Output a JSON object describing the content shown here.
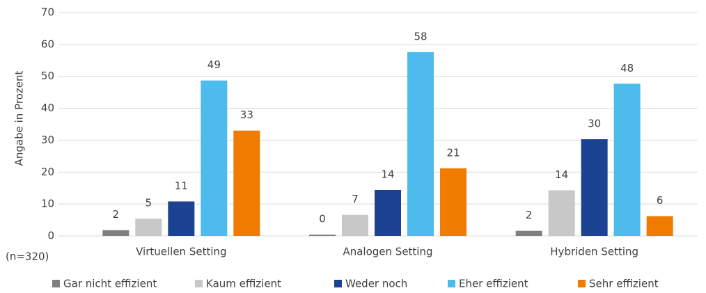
{
  "chart_data": {
    "type": "bar",
    "y_label": "Angabe in Prozent",
    "annotation": "(n=320)",
    "categories": [
      "Virtuellen Setting",
      "Analogen Setting",
      "Hybriden Setting"
    ],
    "series": [
      {
        "name": "Gar nicht effizient",
        "color": "#7f7f7f",
        "values": [
          1.8,
          0.4,
          1.6
        ],
        "value_labels": [
          "2",
          "0",
          "2"
        ]
      },
      {
        "name": "Kaum effizient",
        "color": "#c8c8c8",
        "values": [
          5.4,
          6.6,
          14.3
        ],
        "value_labels": [
          "5",
          "7",
          "14"
        ]
      },
      {
        "name": "Weder noch",
        "color": "#1c4391",
        "values": [
          10.8,
          14.4,
          30.3
        ],
        "value_labels": [
          "11",
          "14",
          "30"
        ]
      },
      {
        "name": "Eher effizient",
        "color": "#4dbcec",
        "values": [
          48.7,
          57.6,
          47.7
        ],
        "value_labels": [
          "49",
          "58",
          "48"
        ]
      },
      {
        "name": "Sehr effizient",
        "color": "#ef7b00",
        "values": [
          33.0,
          21.2,
          6.2
        ],
        "value_labels": [
          "33",
          "21",
          "6"
        ]
      }
    ],
    "ylim": [
      0,
      70
    ],
    "yticks": [
      0,
      10,
      20,
      30,
      40,
      50,
      60,
      70
    ],
    "grid": true
  }
}
